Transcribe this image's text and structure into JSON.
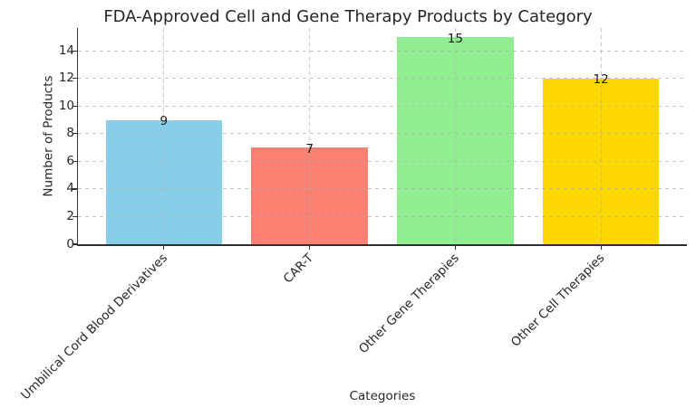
{
  "chart_data": {
    "type": "bar",
    "title": "FDA-Approved Cell and Gene Therapy Products by Category",
    "xlabel": "Categories",
    "ylabel": "Number of Products",
    "categories": [
      "Umbilical Cord Blood Derivatives",
      "CAR-T",
      "Other Gene Therapies",
      "Other Cell Therapies"
    ],
    "values": [
      9,
      7,
      15,
      12
    ],
    "value_labels": [
      "9",
      "7",
      "15",
      "12"
    ],
    "bar_colors": [
      "#87CEEB",
      "#FA8072",
      "#90EE90",
      "#FFD700"
    ],
    "yticks": [
      0,
      2,
      4,
      6,
      8,
      10,
      12,
      14
    ],
    "ylim": [
      0,
      15.66
    ],
    "xlim": [
      -0.59,
      3.59
    ],
    "bar_width_fraction": 0.8,
    "x_tick_rotation_deg": 45,
    "grid": {
      "axis": "both",
      "linestyle": "dashed",
      "color": "#b0b0b0",
      "alpha": 0.7,
      "drawn_above_bars": true
    },
    "legend": null,
    "styles": {
      "text_color": "#262626",
      "spine_color": "#333333",
      "background": "#ffffff"
    }
  }
}
